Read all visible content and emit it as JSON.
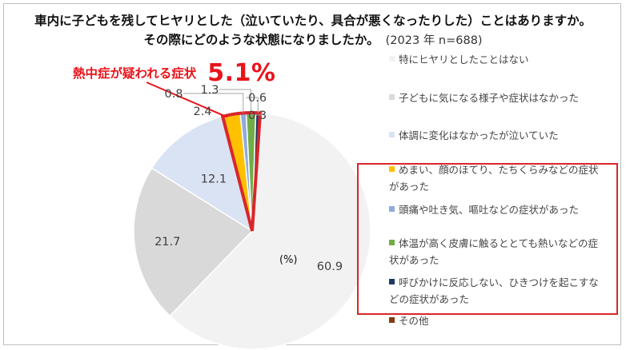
{
  "title": {
    "line1": "車内に子どもを残してヒヤリとした（泣いていたり、具合が悪くなったりした）ことはありますか。",
    "line2": "その際にどのような状態になりましたか。",
    "subtitle": "(2023 年 n=688)"
  },
  "callout": {
    "label": "熱中症が疑われる症状",
    "value": "5.1%"
  },
  "unit_label": "(%)",
  "colors": {
    "callout_red": "#e8141b",
    "highlight_border": "#d9262b"
  },
  "chart_data": {
    "type": "pie",
    "title": "車内に子どもを残してヒヤリとした（泣いていたり、具合が悪くなったりした）ことはありますか。その際にどのような状態になりましたか。",
    "unit": "%",
    "legend_position": "right",
    "slices": [
      {
        "label": "特にヒヤリとしたことはない",
        "value": 60.9,
        "display": "60.9",
        "color": "#f2f2f2"
      },
      {
        "label": "子どもに気になる様子や症状はなかった",
        "value": 21.7,
        "display": "21.7",
        "color": "#d9d9d9"
      },
      {
        "label": "体調に変化はなかったが泣いていた",
        "value": 12.1,
        "display": "12.1",
        "color": "#dae3f3"
      },
      {
        "label": "めまい、顔のほてり、たちくらみなどの症状があった",
        "value": 2.4,
        "display": "2.4",
        "color": "#ffc000"
      },
      {
        "label": "頭痛や吐き気、嘔吐などの症状があった",
        "value": 0.8,
        "display": "0.8",
        "color": "#8faadc"
      },
      {
        "label": "体温が高く皮膚に触るととても熱いなどの症状があった",
        "value": 1.3,
        "display": "1.3",
        "color": "#70ad47"
      },
      {
        "label": "呼びかけに反応しない、ひきつけを起こすなどの症状があった",
        "value": 0.6,
        "display": "0.6",
        "color": "#203864"
      },
      {
        "label": "その他",
        "value": 0.3,
        "display": "0.3",
        "color": "#843c0c"
      }
    ],
    "highlighted_group": {
      "label": "熱中症が疑われる症状",
      "value": 5.1
    }
  }
}
